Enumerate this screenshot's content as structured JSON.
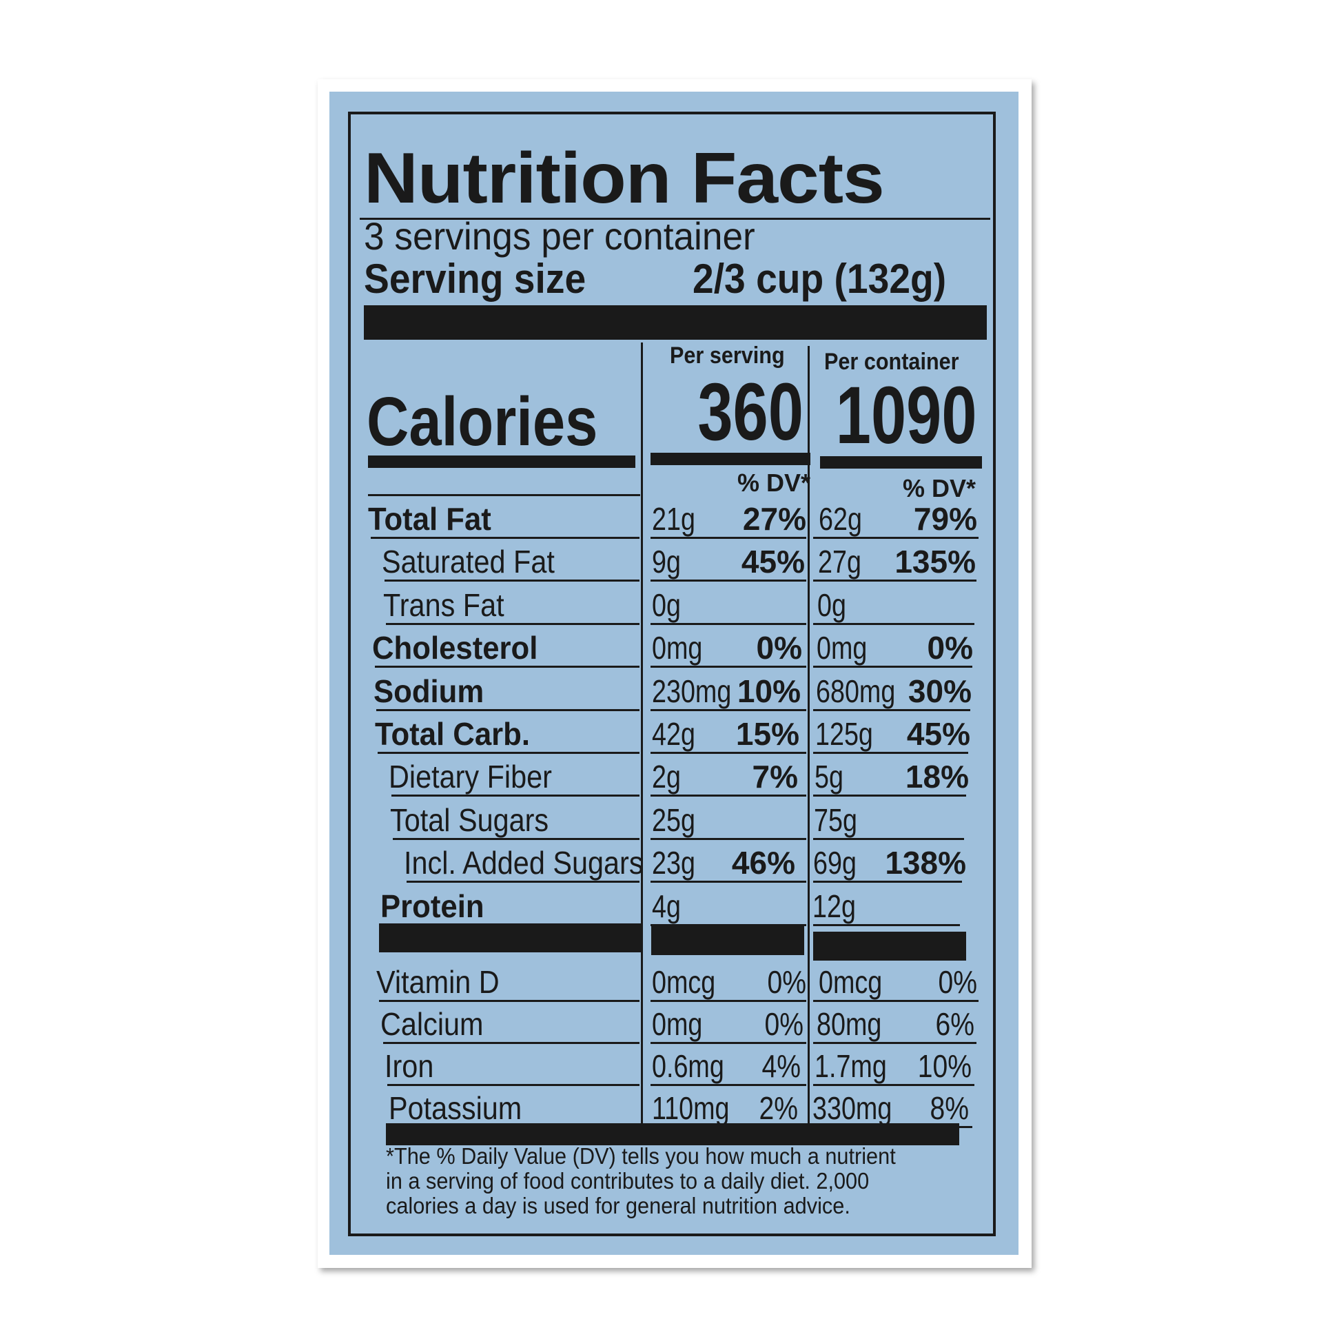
{
  "colors": {
    "background": "#ffffff",
    "label_blue": "#9fc0dc",
    "ink": "#1a1a1a"
  },
  "title": "Nutrition Facts",
  "servings_per_container": "3 servings per container",
  "serving_size_label": "Serving size",
  "serving_size_value": "2/3 cup  (132g)",
  "per_serving_header": "Per serving",
  "per_container_header": "Per container",
  "calories_label": "Calories",
  "calories_per_serving": "360",
  "calories_per_container": "1090",
  "dv_header": "% DV*",
  "nutrients": [
    {
      "label": "Total Fat",
      "bold": true,
      "indent": 0,
      "serving": "21g",
      "serving_dv": "27%",
      "container": "62g",
      "container_dv": "79%"
    },
    {
      "label": "Saturated Fat",
      "bold": false,
      "indent": 1,
      "serving": "9g",
      "serving_dv": "45%",
      "container": "27g",
      "container_dv": "135%"
    },
    {
      "label": "Trans Fat",
      "bold": false,
      "indent": 1,
      "serving": "0g",
      "serving_dv": "",
      "container": "0g",
      "container_dv": ""
    },
    {
      "label": "Cholesterol",
      "bold": true,
      "indent": 0,
      "serving": "0mg",
      "serving_dv": "0%",
      "container": "0mg",
      "container_dv": "0%"
    },
    {
      "label": "Sodium",
      "bold": true,
      "indent": 0,
      "serving": "230mg",
      "serving_dv": "10%",
      "container": "680mg",
      "container_dv": "30%"
    },
    {
      "label": "Total Carb.",
      "bold": true,
      "indent": 0,
      "serving": "42g",
      "serving_dv": "15%",
      "container": "125g",
      "container_dv": "45%"
    },
    {
      "label": "Dietary Fiber",
      "bold": false,
      "indent": 1,
      "serving": "2g",
      "serving_dv": "7%",
      "container": "5g",
      "container_dv": "18%"
    },
    {
      "label": "Total Sugars",
      "bold": false,
      "indent": 1,
      "serving": "25g",
      "serving_dv": "",
      "container": "75g",
      "container_dv": ""
    },
    {
      "label": "Incl. Added Sugars",
      "bold": false,
      "indent": 2,
      "serving": "23g",
      "serving_dv": "46%",
      "container": "69g",
      "container_dv": "138%"
    },
    {
      "label": "Protein",
      "bold": true,
      "indent": 0,
      "serving": "4g",
      "serving_dv": "",
      "container": "12g",
      "container_dv": ""
    }
  ],
  "vitamins": [
    {
      "label": "Vitamin D",
      "serving": "0mcg",
      "serving_dv": "0%",
      "container": "0mcg",
      "container_dv": "0%"
    },
    {
      "label": "Calcium",
      "serving": "0mg",
      "serving_dv": "0%",
      "container": "80mg",
      "container_dv": "6%"
    },
    {
      "label": "Iron",
      "serving": "0.6mg",
      "serving_dv": "4%",
      "container": "1.7mg",
      "container_dv": "10%"
    },
    {
      "label": "Potassium",
      "serving": "110mg",
      "serving_dv": "2%",
      "container": "330mg",
      "container_dv": "8%"
    }
  ],
  "footnote": [
    "*The % Daily Value (DV) tells you how much a nutrient",
    "in a serving of food contributes to a daily diet. 2,000",
    "calories a day is used for general nutrition advice."
  ]
}
